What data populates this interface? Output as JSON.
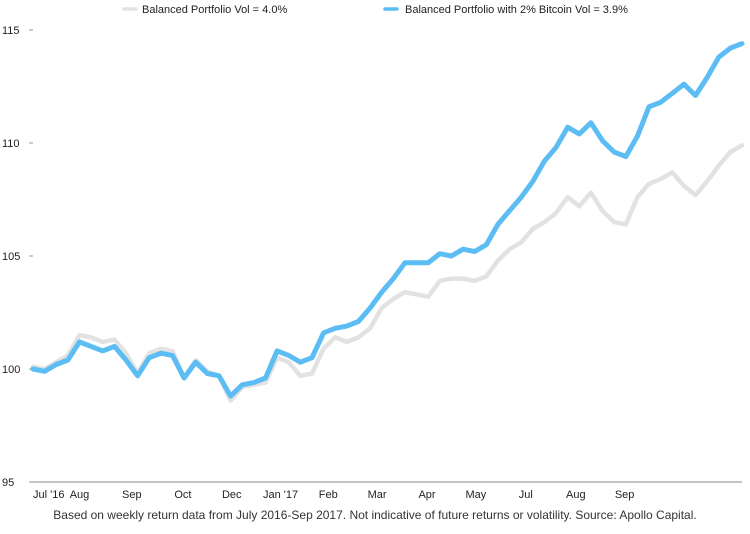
{
  "chart_data": {
    "type": "line",
    "title": "",
    "xlabel": "",
    "ylabel": "",
    "ylim": [
      95,
      115
    ],
    "yticks": [
      95,
      100,
      105,
      110,
      115
    ],
    "xlim": [
      0,
      61
    ],
    "grid": false,
    "legend_position": "top",
    "x_tick_labels": [
      {
        "label": "Jul '16",
        "x": 0
      },
      {
        "label": "Aug",
        "x": 4
      },
      {
        "label": "Sep",
        "x": 8.5
      },
      {
        "label": "Oct",
        "x": 12.9
      },
      {
        "label": "Dec",
        "x": 17.1
      },
      {
        "label": "Jan '17",
        "x": 21.3
      },
      {
        "label": "Feb",
        "x": 25.4
      },
      {
        "label": "Mar",
        "x": 29.6
      },
      {
        "label": "Apr",
        "x": 33.9
      },
      {
        "label": "May",
        "x": 38.1
      },
      {
        "label": "Jul",
        "x": 42.4
      },
      {
        "label": "Aug",
        "x": 46.7
      },
      {
        "label": "Sep",
        "x": 50.9
      }
    ],
    "series": [
      {
        "name": "Balanced Portfolio Vol = 4.0%",
        "color": "#e2e2e2",
        "values": [
          100.1,
          100.0,
          100.3,
          100.6,
          101.5,
          101.4,
          101.2,
          101.3,
          100.7,
          99.8,
          100.7,
          100.9,
          100.8,
          99.6,
          100.4,
          99.9,
          99.7,
          98.6,
          99.2,
          99.3,
          99.4,
          100.5,
          100.3,
          99.7,
          99.8,
          100.9,
          101.4,
          101.2,
          101.4,
          101.8,
          102.7,
          103.1,
          103.4,
          103.3,
          103.2,
          103.9,
          104.0,
          104.0,
          103.9,
          104.1,
          104.8,
          105.3,
          105.6,
          106.2,
          106.5,
          106.9,
          107.6,
          107.2,
          107.8,
          107.0,
          106.5,
          106.4,
          107.6,
          108.2,
          108.4,
          108.7,
          108.1,
          107.7,
          108.3,
          109.0,
          109.6,
          109.9
        ]
      },
      {
        "name": "Balanced Portfolio with 2% Bitcoin Vol = 3.9%",
        "color": "#5bbdf4",
        "values": [
          100.0,
          99.9,
          100.2,
          100.4,
          101.2,
          101.0,
          100.8,
          101.0,
          100.4,
          99.7,
          100.5,
          100.7,
          100.6,
          99.6,
          100.3,
          99.8,
          99.7,
          98.8,
          99.3,
          99.4,
          99.6,
          100.8,
          100.6,
          100.3,
          100.5,
          101.6,
          101.8,
          101.9,
          102.1,
          102.7,
          103.4,
          104.0,
          104.7,
          104.7,
          104.7,
          105.1,
          105.0,
          105.3,
          105.2,
          105.5,
          106.4,
          107.0,
          107.6,
          108.3,
          109.2,
          109.8,
          110.7,
          110.4,
          110.9,
          110.1,
          109.6,
          109.4,
          110.3,
          111.6,
          111.8,
          112.2,
          112.6,
          112.1,
          112.9,
          113.8,
          114.2,
          114.4
        ]
      }
    ]
  },
  "caption": "Based on weekly return data from July 2016-Sep 2017. Not indicative of future returns or volatility. Source: Apollo Capital."
}
